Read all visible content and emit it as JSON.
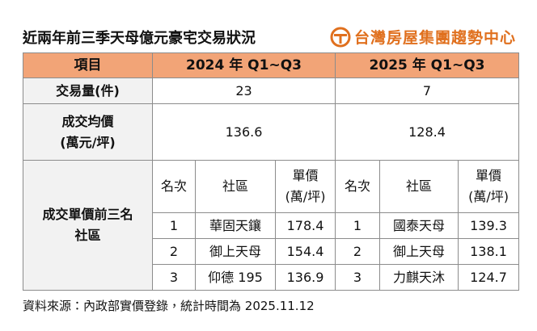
{
  "header": {
    "title": "近兩年前三季天母億元豪宅交易狀況",
    "brand": "台灣房屋集團趨勢中心"
  },
  "table": {
    "columns": [
      "項目",
      "2024 年 Q1~Q3",
      "2025 年 Q1~Q3"
    ],
    "volume": {
      "label": "交易量(件)",
      "values": [
        23,
        7
      ]
    },
    "avg_price": {
      "label": [
        "成交均價",
        "(萬元/坪)"
      ],
      "values": [
        136.6,
        128.4
      ]
    },
    "top3": {
      "label": [
        "成交單價前三名",
        "社區"
      ],
      "subheaders": [
        "名次",
        "社區",
        [
          "單價",
          "(萬/坪)"
        ]
      ],
      "years": [
        [
          [
            1,
            "華固天鑲",
            178.4
          ],
          [
            2,
            "御上天母",
            154.4
          ],
          [
            3,
            "仰德 195",
            136.9
          ]
        ],
        [
          [
            1,
            "國泰天母",
            139.3
          ],
          [
            2,
            "御上天母",
            138.1
          ],
          [
            3,
            "力麒天沐",
            124.7
          ]
        ]
      ]
    }
  },
  "footnote": "資料來源：內政部實價登錄，統計時間為 2025.11.12"
}
